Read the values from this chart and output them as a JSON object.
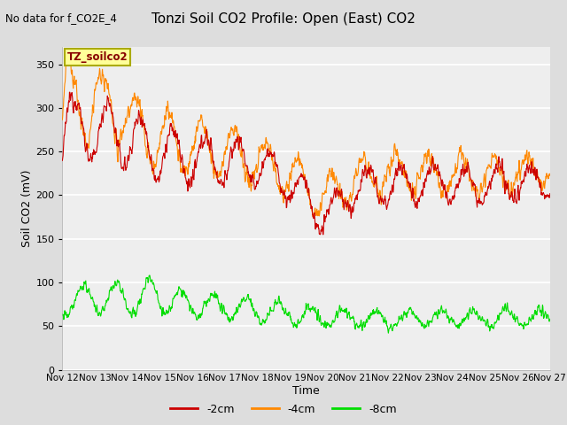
{
  "title": "Tonzi Soil CO2 Profile: Open (East) CO2",
  "subtitle": "No data for f_CO2E_4",
  "ylabel": "Soil CO2 (mV)",
  "xlabel": "Time",
  "legend_label": "TZ_soilco2",
  "ylim": [
    0,
    370
  ],
  "yticks": [
    0,
    50,
    100,
    150,
    200,
    250,
    300,
    350
  ],
  "x_tick_days": [
    12,
    13,
    14,
    15,
    16,
    17,
    18,
    19,
    20,
    21,
    22,
    23,
    24,
    25,
    26,
    27
  ],
  "color_2cm": "#cc0000",
  "color_4cm": "#ff8800",
  "color_8cm": "#00dd00",
  "bg_color": "#dddddd",
  "plot_bg_color": "#eeeeee",
  "legend_box_color": "#ffff99",
  "legend_box_edge": "#aaaa00",
  "grid_color": "#ffffff",
  "line_legend": [
    {
      "label": "-2cm",
      "color": "#cc0000"
    },
    {
      "label": "-4cm",
      "color": "#ff8800"
    },
    {
      "label": "-8cm",
      "color": "#00dd00"
    }
  ]
}
